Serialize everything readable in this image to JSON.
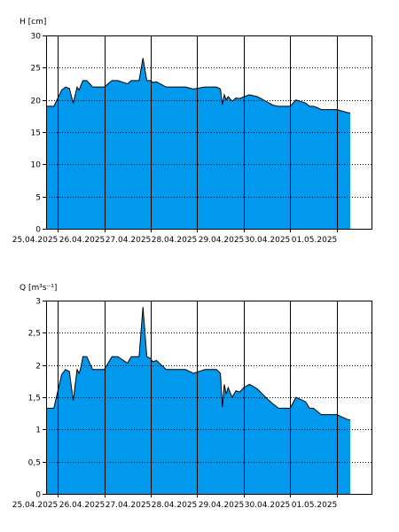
{
  "colors": {
    "fill": "#0099ee",
    "line": "#000000",
    "grid": "#000000",
    "background": "#ffffff"
  },
  "chart_data": [
    {
      "type": "area",
      "title": "",
      "ylabel": "H [cm]",
      "xlabel": "",
      "ylim": [
        0,
        30
      ],
      "xlim": [
        "2025-04-24T18:00",
        "2025-05-01T18:00"
      ],
      "yticks": [
        0,
        5,
        10,
        15,
        20,
        25,
        30
      ],
      "ytick_labels": [
        "0",
        "5",
        "10",
        "15",
        "20",
        "25",
        "30"
      ],
      "xticks": [
        "2025-04-25T00:00",
        "2025-04-26T00:00",
        "2025-04-27T00:00",
        "2025-04-28T00:00",
        "2025-04-29T00:00",
        "2025-04-30T00:00",
        "2025-05-01T00:00"
      ],
      "xtick_labels": [
        "25.04.2025",
        "26.04.2025",
        "27.04.2025",
        "28.04.2025",
        "29.04.2025",
        "30.04.2025",
        "01.05.2025"
      ],
      "grid": true,
      "x": [
        "2025-04-24T18:00",
        "2025-04-24T22:00",
        "2025-04-25T02:00",
        "2025-04-25T04:00",
        "2025-04-25T06:00",
        "2025-04-25T08:00",
        "2025-04-25T10:00",
        "2025-04-25T11:00",
        "2025-04-25T12:00",
        "2025-04-25T13:00",
        "2025-04-25T15:00",
        "2025-04-25T18:00",
        "2025-04-25T20:00",
        "2025-04-25T22:00",
        "2025-04-26T00:00",
        "2025-04-26T04:00",
        "2025-04-26T07:00",
        "2025-04-26T12:00",
        "2025-04-26T14:00",
        "2025-04-26T18:00",
        "2025-04-26T20:00",
        "2025-04-26T22:00",
        "2025-04-27T00:00",
        "2025-04-27T01:00",
        "2025-04-27T03:00",
        "2025-04-27T08:00",
        "2025-04-27T12:00",
        "2025-04-27T18:00",
        "2025-04-27T22:00",
        "2025-04-28T04:00",
        "2025-04-28T10:00",
        "2025-04-28T12:00",
        "2025-04-28T13:00",
        "2025-04-28T14:00",
        "2025-04-28T15:00",
        "2025-04-28T16:00",
        "2025-04-28T18:00",
        "2025-04-28T20:00",
        "2025-04-28T22:00",
        "2025-04-29T00:00",
        "2025-04-29T03:00",
        "2025-04-29T07:00",
        "2025-04-29T12:00",
        "2025-04-29T15:00",
        "2025-04-29T18:00",
        "2025-04-29T22:00",
        "2025-04-30T00:00",
        "2025-04-30T03:00",
        "2025-04-30T08:00",
        "2025-04-30T10:00",
        "2025-04-30T12:00",
        "2025-04-30T14:00",
        "2025-04-30T16:00",
        "2025-04-30T20:00",
        "2025-05-01T00:00",
        "2025-05-01T06:00",
        "2025-05-01T07:00"
      ],
      "values": [
        19,
        19,
        21.5,
        22,
        21.8,
        19.5,
        22,
        21.5,
        22.3,
        23,
        23,
        22,
        22,
        22,
        22,
        23,
        23,
        22.5,
        23,
        23,
        26.5,
        23,
        23,
        22.7,
        22.8,
        22,
        22,
        22,
        21.7,
        22,
        22,
        21.7,
        19.3,
        20.8,
        20,
        20.5,
        19.8,
        20.3,
        20.2,
        20.5,
        20.8,
        20.5,
        19.7,
        19.2,
        19,
        19,
        19,
        20,
        19.5,
        19,
        19,
        18.8,
        18.5,
        18.5,
        18.5,
        18,
        18
      ],
      "series": [
        {
          "name": ""
        }
      ]
    },
    {
      "type": "area",
      "title": "",
      "ylabel": "Q [m³s⁻¹]",
      "xlabel": "",
      "ylim": [
        0,
        3
      ],
      "xlim": [
        "2025-04-24T18:00",
        "2025-05-01T18:00"
      ],
      "yticks": [
        0,
        0.5,
        1,
        1.5,
        2,
        2.5,
        3
      ],
      "ytick_labels": [
        "0",
        "0,5",
        "1",
        "1,5",
        "2",
        "2,5",
        "3"
      ],
      "xticks": [
        "2025-04-25T00:00",
        "2025-04-26T00:00",
        "2025-04-27T00:00",
        "2025-04-28T00:00",
        "2025-04-29T00:00",
        "2025-04-30T00:00",
        "2025-05-01T00:00"
      ],
      "xtick_labels": [
        "25.04.2025",
        "26.04.2025",
        "27.04.2025",
        "28.04.2025",
        "29.04.2025",
        "30.04.2025",
        "01.05.2025"
      ],
      "grid": true,
      "x": [
        "2025-04-24T18:00",
        "2025-04-24T22:00",
        "2025-04-25T02:00",
        "2025-04-25T04:00",
        "2025-04-25T06:00",
        "2025-04-25T08:00",
        "2025-04-25T10:00",
        "2025-04-25T11:00",
        "2025-04-25T12:00",
        "2025-04-25T13:00",
        "2025-04-25T15:00",
        "2025-04-25T18:00",
        "2025-04-25T20:00",
        "2025-04-25T22:00",
        "2025-04-26T00:00",
        "2025-04-26T04:00",
        "2025-04-26T07:00",
        "2025-04-26T12:00",
        "2025-04-26T14:00",
        "2025-04-26T18:00",
        "2025-04-26T20:00",
        "2025-04-26T22:00",
        "2025-04-27T00:00",
        "2025-04-27T01:00",
        "2025-04-27T03:00",
        "2025-04-27T08:00",
        "2025-04-27T12:00",
        "2025-04-27T18:00",
        "2025-04-27T22:00",
        "2025-04-28T04:00",
        "2025-04-28T10:00",
        "2025-04-28T12:00",
        "2025-04-28T13:00",
        "2025-04-28T14:00",
        "2025-04-28T15:00",
        "2025-04-28T16:00",
        "2025-04-28T18:00",
        "2025-04-28T20:00",
        "2025-04-28T22:00",
        "2025-04-29T00:00",
        "2025-04-29T03:00",
        "2025-04-29T07:00",
        "2025-04-29T12:00",
        "2025-04-29T15:00",
        "2025-04-29T18:00",
        "2025-04-29T22:00",
        "2025-04-30T00:00",
        "2025-04-30T03:00",
        "2025-04-30T08:00",
        "2025-04-30T10:00",
        "2025-04-30T12:00",
        "2025-04-30T14:00",
        "2025-04-30T16:00",
        "2025-04-30T20:00",
        "2025-05-01T00:00",
        "2025-05-01T06:00",
        "2025-05-01T07:00"
      ],
      "values": [
        1.33,
        1.33,
        1.85,
        1.93,
        1.9,
        1.45,
        1.93,
        1.87,
        1.97,
        2.13,
        2.13,
        1.93,
        1.93,
        1.93,
        1.93,
        2.13,
        2.13,
        2.03,
        2.13,
        2.13,
        2.9,
        2.13,
        2.1,
        2.05,
        2.07,
        1.93,
        1.93,
        1.93,
        1.87,
        1.93,
        1.93,
        1.87,
        1.35,
        1.7,
        1.55,
        1.65,
        1.5,
        1.6,
        1.58,
        1.65,
        1.7,
        1.63,
        1.48,
        1.4,
        1.33,
        1.33,
        1.33,
        1.5,
        1.43,
        1.33,
        1.33,
        1.28,
        1.23,
        1.23,
        1.23,
        1.15,
        1.15
      ],
      "series": [
        {
          "name": ""
        }
      ]
    }
  ]
}
